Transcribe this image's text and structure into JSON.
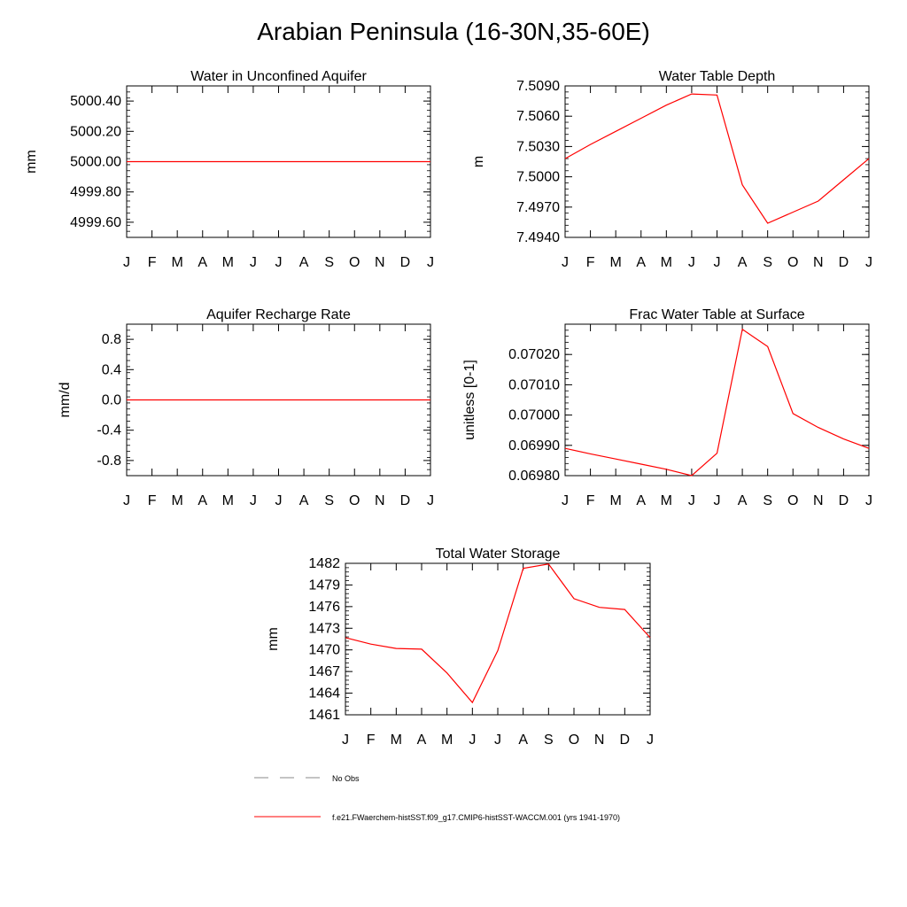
{
  "title": "Arabian Peninsula (16-30N,35-60E)",
  "months": [
    "J",
    "F",
    "M",
    "A",
    "M",
    "J",
    "J",
    "A",
    "S",
    "O",
    "N",
    "D",
    "J"
  ],
  "legend": [
    {
      "label": "No Obs",
      "color": "#888888",
      "style": "dashed"
    },
    {
      "label": "f.e21.FWaerchem-histSST.f09_g17.CMIP6-histSST-WACCM.001 (yrs 1941-1970)",
      "color": "#ff0000",
      "style": "solid"
    }
  ],
  "chart_data": [
    {
      "type": "line",
      "title": "Water in Unconfined Aquifer",
      "xlabel": "",
      "ylabel": "mm",
      "ylim": [
        4999.5,
        5000.5
      ],
      "y_ticks": [
        "5000.40",
        "5000.20",
        "5000.00",
        "4999.80",
        "4999.60"
      ],
      "y_tick_values": [
        5000.4,
        5000.2,
        5000.0,
        4999.8,
        4999.6
      ],
      "x": [
        "J",
        "F",
        "M",
        "A",
        "M",
        "J",
        "J",
        "A",
        "S",
        "O",
        "N",
        "D",
        "J"
      ],
      "series": [
        {
          "values": [
            5000,
            5000,
            5000,
            5000,
            5000,
            5000,
            5000,
            5000,
            5000,
            5000,
            5000,
            5000,
            5000
          ],
          "color": "#ff0000"
        }
      ]
    },
    {
      "type": "line",
      "title": "Water Table Depth",
      "xlabel": "",
      "ylabel": "m",
      "ylim": [
        7.494,
        7.509
      ],
      "y_ticks": [
        "7.5090",
        "7.5060",
        "7.5030",
        "7.5000",
        "7.4970",
        "7.4940"
      ],
      "y_tick_values": [
        7.509,
        7.506,
        7.503,
        7.5,
        7.497,
        7.494
      ],
      "x": [
        "J",
        "F",
        "M",
        "A",
        "M",
        "J",
        "J",
        "A",
        "S",
        "O",
        "N",
        "D",
        "J"
      ],
      "series": [
        {
          "values": [
            7.5018,
            7.5032,
            7.5045,
            7.5058,
            7.5071,
            7.5082,
            7.5081,
            7.4992,
            7.4954,
            7.4965,
            7.4976,
            7.4997,
            7.5018
          ],
          "color": "#ff0000"
        }
      ]
    },
    {
      "type": "line",
      "title": "Aquifer Recharge Rate",
      "xlabel": "",
      "ylabel": "mm/d",
      "ylim": [
        -1.0,
        1.0
      ],
      "y_ticks": [
        "0.8",
        "0.4",
        "0.0",
        "-0.4",
        "-0.8"
      ],
      "y_tick_values": [
        0.8,
        0.4,
        0.0,
        -0.4,
        -0.8
      ],
      "x": [
        "J",
        "F",
        "M",
        "A",
        "M",
        "J",
        "J",
        "A",
        "S",
        "O",
        "N",
        "D",
        "J"
      ],
      "series": [
        {
          "values": [
            0,
            0,
            0,
            0,
            0,
            0,
            0,
            0,
            0,
            0,
            0,
            0,
            0
          ],
          "color": "#ff0000"
        }
      ]
    },
    {
      "type": "line",
      "title": "Frac Water Table at Surface",
      "xlabel": "",
      "ylabel": "unitless [0-1]",
      "ylim": [
        0.0698,
        0.0703
      ],
      "y_ticks": [
        "0.07020",
        "0.07010",
        "0.07000",
        "0.06990",
        "0.06980"
      ],
      "y_tick_values": [
        0.0702,
        0.0701,
        0.07,
        0.0699,
        0.0698
      ],
      "x": [
        "J",
        "F",
        "M",
        "A",
        "M",
        "J",
        "J",
        "A",
        "S",
        "O",
        "N",
        "D",
        "J"
      ],
      "series": [
        {
          "values": [
            0.06989,
            0.069872,
            0.069855,
            0.069838,
            0.069821,
            0.0698,
            0.069874,
            0.070283,
            0.070226,
            0.070005,
            0.069959,
            0.069921,
            0.06989
          ],
          "color": "#ff0000"
        }
      ]
    },
    {
      "type": "line",
      "title": "Total Water Storage",
      "xlabel": "",
      "ylabel": "mm",
      "ylim": [
        1461,
        1482
      ],
      "y_ticks": [
        "1482",
        "1479",
        "1476",
        "1473",
        "1470",
        "1467",
        "1464",
        "1461"
      ],
      "y_tick_values": [
        1482,
        1479,
        1476,
        1473,
        1470,
        1467,
        1464,
        1461
      ],
      "x": [
        "J",
        "F",
        "M",
        "A",
        "M",
        "J",
        "J",
        "A",
        "S",
        "O",
        "N",
        "D",
        "J"
      ],
      "series": [
        {
          "values": [
            1471.7,
            1470.8,
            1470.2,
            1470.1,
            1466.8,
            1462.7,
            1469.9,
            1481.3,
            1481.9,
            1477.1,
            1475.9,
            1475.6,
            1471.7
          ],
          "color": "#ff0000"
        }
      ]
    }
  ]
}
